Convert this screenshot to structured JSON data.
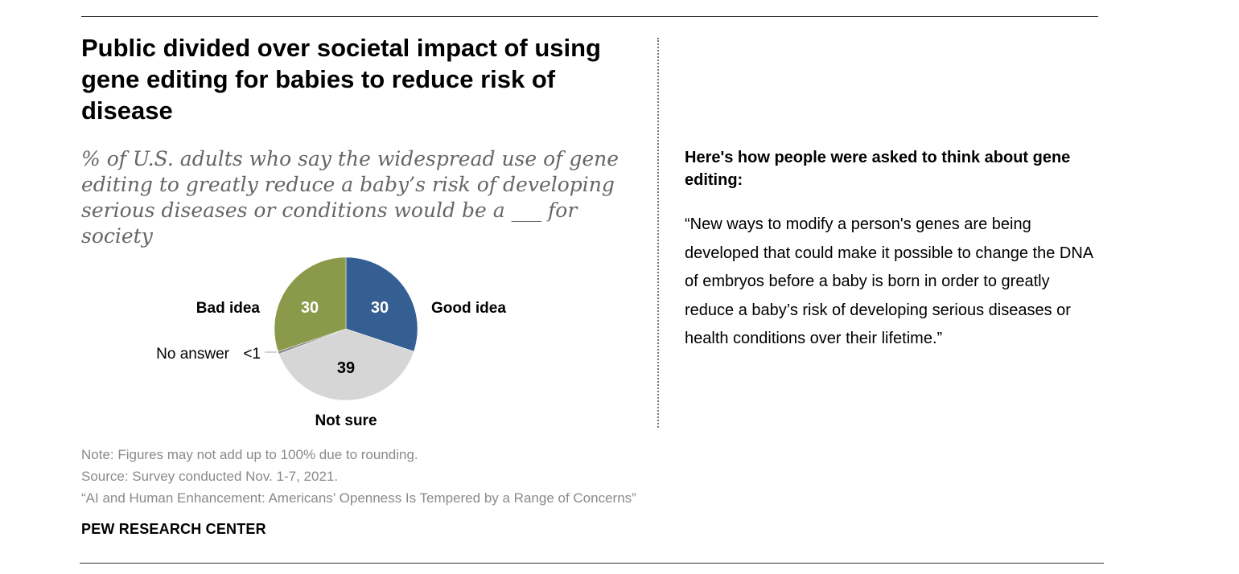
{
  "title": "Public divided over societal impact of using gene editing for babies to reduce risk of disease",
  "subtitle": "% of U.S. adults who say the widespread use of gene editing to greatly reduce a baby’s risk of developing serious diseases or conditions would be a ___ for society",
  "colors": {
    "good_idea": "#355F93",
    "not_sure": "#D6D6D6",
    "no_answer": "#8C8C8C",
    "bad_idea": "#8A9A4A"
  },
  "chart_data": {
    "type": "pie",
    "title": "Public divided over societal impact of using gene editing for babies to reduce risk of disease",
    "slices": [
      {
        "key": "good_idea",
        "label": "Good idea",
        "value": 30,
        "display": "30"
      },
      {
        "key": "not_sure",
        "label": "Not sure",
        "value": 39,
        "display": "39"
      },
      {
        "key": "no_answer",
        "label": "No answer",
        "value": 0.6,
        "display": "<1"
      },
      {
        "key": "bad_idea",
        "label": "Bad idea",
        "value": 30,
        "display": "30"
      }
    ]
  },
  "sidebar": {
    "heading": "Here's how people were asked to think about gene editing:",
    "quote": "“New ways to modify a person's genes are being developed that could make it possible to change the DNA of embryos before a baby is born in order to greatly reduce a baby’s risk of developing serious diseases or health conditions over their lifetime.”"
  },
  "notes": {
    "note": "Note: Figures may not add up to 100% due to rounding.",
    "source": "Source: Survey conducted Nov. 1-7, 2021.",
    "report": "“AI and Human Enhancement: Americans’ Openness Is Tempered by a Range of Concerns”"
  },
  "organization": "PEW RESEARCH CENTER"
}
